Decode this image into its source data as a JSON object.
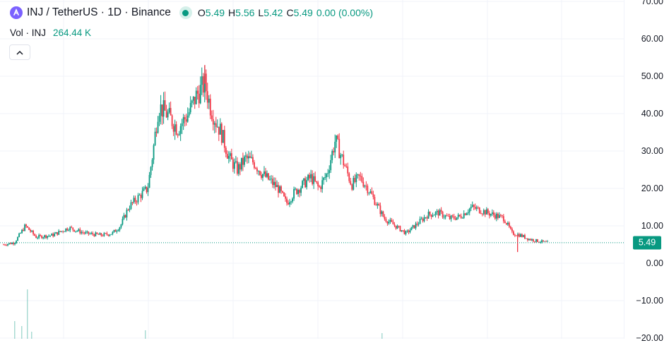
{
  "legend": {
    "symbol": "INJ / TetherUS · 1D · Binance",
    "open_label": "O",
    "open": "5.49",
    "high_label": "H",
    "high": "5.56",
    "low_label": "L",
    "low": "5.42",
    "close_label": "C",
    "close": "5.49",
    "change": "0.00 (0.00%)"
  },
  "volume_legend": {
    "label": "Vol · INJ",
    "value": "264.44 K"
  },
  "price_axis": {
    "ticks": [
      "70.00",
      "60.00",
      "50.00",
      "40.00",
      "30.00",
      "20.00",
      "10.00",
      "0.00",
      "−10.00",
      "−20.00"
    ],
    "tick_values": [
      70,
      60,
      50,
      40,
      30,
      20,
      10,
      0,
      -10,
      -20
    ],
    "last_price": "5.49",
    "last_price_value": 5.49
  },
  "colors": {
    "up": "#089981",
    "down": "#f23645",
    "grid": "#f0f3fa",
    "brand": "#7b61ff"
  },
  "icons": {
    "logo": "inj-logo-icon",
    "status": "market-status-dot-icon",
    "collapse": "chevron-up-icon"
  },
  "chart_data": {
    "type": "candlestick",
    "symbol": "INJ / TetherUS",
    "interval": "1D",
    "exchange": "Binance",
    "y_range": [
      -20,
      70
    ],
    "last_price": 5.49,
    "grid": true,
    "price_path": [
      [
        0,
        5.0
      ],
      [
        0.02,
        5.5
      ],
      [
        0.04,
        10.0
      ],
      [
        0.06,
        7.0
      ],
      [
        0.09,
        7.5
      ],
      [
        0.12,
        9.5
      ],
      [
        0.15,
        8.0
      ],
      [
        0.18,
        7.5
      ],
      [
        0.2,
        8.0
      ],
      [
        0.215,
        10.0
      ],
      [
        0.23,
        15.0
      ],
      [
        0.25,
        18.0
      ],
      [
        0.265,
        20.0
      ],
      [
        0.275,
        30.0
      ],
      [
        0.285,
        42.0
      ],
      [
        0.3,
        40.0
      ],
      [
        0.32,
        36.0
      ],
      [
        0.34,
        40.0
      ],
      [
        0.355,
        45.0
      ],
      [
        0.37,
        48.0
      ],
      [
        0.38,
        42.0
      ],
      [
        0.39,
        38.0
      ],
      [
        0.4,
        35.0
      ],
      [
        0.415,
        28.0
      ],
      [
        0.43,
        25.0
      ],
      [
        0.445,
        28.0
      ],
      [
        0.46,
        27.0
      ],
      [
        0.475,
        24.0
      ],
      [
        0.49,
        22.0
      ],
      [
        0.505,
        20.0
      ],
      [
        0.52,
        16.0
      ],
      [
        0.535,
        19.0
      ],
      [
        0.55,
        21.0
      ],
      [
        0.565,
        23.0
      ],
      [
        0.58,
        20.0
      ],
      [
        0.595,
        24.0
      ],
      [
        0.61,
        33.0
      ],
      [
        0.625,
        27.0
      ],
      [
        0.64,
        21.0
      ],
      [
        0.655,
        23.0
      ],
      [
        0.67,
        20.0
      ],
      [
        0.685,
        16.0
      ],
      [
        0.7,
        12.0
      ],
      [
        0.72,
        10.0
      ],
      [
        0.74,
        8.0
      ],
      [
        0.76,
        10.5
      ],
      [
        0.78,
        13.0
      ],
      [
        0.8,
        13.5
      ],
      [
        0.82,
        12.0
      ],
      [
        0.84,
        12.5
      ],
      [
        0.86,
        15.0
      ],
      [
        0.88,
        14.0
      ],
      [
        0.9,
        13.0
      ],
      [
        0.92,
        12.0
      ],
      [
        0.935,
        8.0
      ],
      [
        0.95,
        7.5
      ],
      [
        0.965,
        6.5
      ],
      [
        0.98,
        6.0
      ],
      [
        1.0,
        5.49
      ]
    ],
    "wick_extremes": {
      "max_high": 53.0,
      "min_low": 3.0
    }
  }
}
